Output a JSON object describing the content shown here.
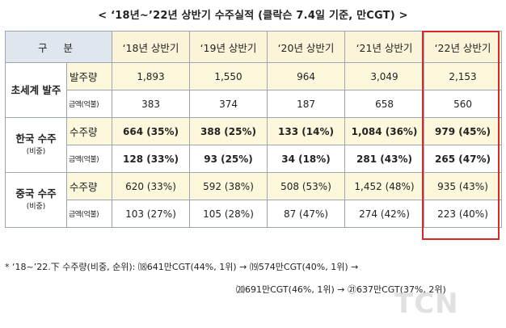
{
  "title": "< ‘18년~’22년 상반기 수주실적 (클락슨 7.4일 기준, 만CGT) >",
  "header": {
    "gubun": "구 분",
    "years": [
      "‘18년 상반기",
      "‘19년 상반기",
      "‘20년 상반기",
      "‘21년 상반기",
      "‘22년 상반기"
    ]
  },
  "groups": [
    {
      "label": "초세계 발주",
      "sub": "",
      "rows": [
        {
          "metric": "발주량",
          "metric_small": false,
          "values": [
            "1,893",
            "1,550",
            "964",
            "3,049",
            "2,153"
          ]
        },
        {
          "metric": "금액(억불)",
          "metric_small": true,
          "values": [
            "383",
            "374",
            "187",
            "658",
            "560"
          ]
        }
      ]
    },
    {
      "label": "한국 수주",
      "sub": "(비중)",
      "rows": [
        {
          "metric": "수주량",
          "metric_small": false,
          "values": [
            "664 (35%)",
            "388 (25%)",
            "133 (14%)",
            "1,084 (36%)",
            "979 (45%)"
          ]
        },
        {
          "metric": "금액(억불)",
          "metric_small": true,
          "values": [
            "128 (33%)",
            "93 (25%)",
            "34 (18%)",
            "281 (43%)",
            "265 (47%)"
          ]
        }
      ]
    },
    {
      "label": "중국 수주",
      "sub": "(비중)",
      "rows": [
        {
          "metric": "수주량",
          "metric_small": false,
          "values": [
            "620 (33%)",
            "592 (38%)",
            "508 (53%)",
            "1,452 (48%)",
            "935 (43%)"
          ]
        },
        {
          "metric": "금액(억불)",
          "metric_small": true,
          "values": [
            "103 (27%)",
            "105 (28%)",
            "87 (47%)",
            "274 (42%)",
            "223 (40%)"
          ]
        }
      ]
    }
  ],
  "footnote": {
    "line1": "* ‘18~’22.下 수주량(비중, 순위): ⒅641만CGT(44%, 1위) → ⒆574만CGT(40%, 1위)   →",
    "line2": "⒇691만CGT(46%, 1위) → ㉑637만CGT(37%, 2위)"
  },
  "watermark": "TCN"
}
